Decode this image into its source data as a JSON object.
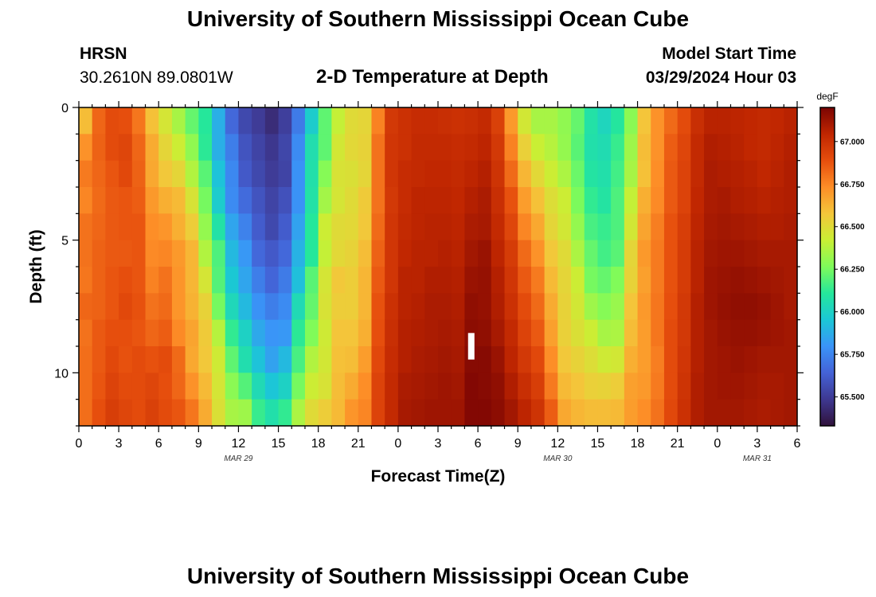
{
  "header": {
    "title": "University of Southern Mississippi Ocean Cube",
    "station": "HRSN",
    "coords": "30.2610N  89.0801W",
    "subtitle": "2-D Temperature at Depth",
    "model_start_label": "Model Start Time",
    "model_start_value": "03/29/2024 Hour 03",
    "footer_title": "University of Southern Mississippi Ocean Cube"
  },
  "colors": {
    "stops": [
      "#30123b",
      "#3e3891",
      "#4462d6",
      "#3a94f8",
      "#1bc7d6",
      "#25e79b",
      "#7ffb5a",
      "#c9ef34",
      "#f4c63a",
      "#fd8d27",
      "#e64e0d",
      "#c02601",
      "#7a0403"
    ]
  },
  "chart_data": {
    "type": "heatmap",
    "title": "2-D Temperature at Depth",
    "xlabel": "Forecast Time(Z)",
    "ylabel": "Depth (ft)",
    "x_tick_labels": [
      "0",
      "3",
      "6",
      "9",
      "12",
      "15",
      "18",
      "21",
      "0",
      "3",
      "6",
      "9",
      "12",
      "15",
      "18",
      "21",
      "0",
      "3",
      "6"
    ],
    "x_range_hours": [
      0,
      54
    ],
    "date_labels": [
      {
        "label": "MAR 29",
        "hour": 12
      },
      {
        "label": "MAR 30",
        "hour": 36
      },
      {
        "label": "MAR 31",
        "hour": 51
      }
    ],
    "y_tick_labels": [
      "0",
      "5",
      "10"
    ],
    "ylim": [
      0,
      12
    ],
    "colorbar": {
      "unit": "degF",
      "min": 65.33,
      "max": 67.2,
      "ticks": [
        "65.500",
        "65.750",
        "66.000",
        "66.250",
        "66.500",
        "66.750",
        "67.000"
      ],
      "tick_values": [
        65.5,
        65.75,
        66.0,
        66.25,
        66.5,
        66.75,
        67.0
      ]
    },
    "depth_levels_ft": [
      0.5,
      1.5,
      2.5,
      3.5,
      4.5,
      5.5,
      6.5,
      7.5,
      8.5,
      9.5,
      10.5,
      11.5
    ],
    "hour_bin": 1,
    "series": [
      {
        "name": "1h",
        "values": [
          66.6,
          66.72,
          66.78,
          66.75,
          66.8,
          66.8,
          66.79,
          66.83,
          66.8,
          66.81,
          66.81,
          66.81
        ]
      },
      {
        "name": "2h",
        "values": [
          66.83,
          66.84,
          66.83,
          66.82,
          66.83,
          66.84,
          66.84,
          66.84,
          66.86,
          66.86,
          66.87,
          66.89
        ]
      },
      {
        "name": "3h",
        "values": [
          66.9,
          66.9,
          66.87,
          66.86,
          66.86,
          66.86,
          66.87,
          66.87,
          66.89,
          66.91,
          66.93,
          66.95
        ]
      },
      {
        "name": "4h",
        "values": [
          66.89,
          66.92,
          66.91,
          66.87,
          66.87,
          66.86,
          66.89,
          66.91,
          66.89,
          66.88,
          66.9,
          66.92
        ]
      },
      {
        "name": "5h",
        "values": [
          66.79,
          66.83,
          66.84,
          66.85,
          66.87,
          66.87,
          66.87,
          66.88,
          66.87,
          66.9,
          66.9,
          66.9
        ]
      },
      {
        "name": "6h",
        "values": [
          66.59,
          66.65,
          66.66,
          66.7,
          66.73,
          66.74,
          66.76,
          66.8,
          66.83,
          66.88,
          66.92,
          66.94
        ]
      },
      {
        "name": "7h",
        "values": [
          66.46,
          66.52,
          66.57,
          66.64,
          66.71,
          66.75,
          66.8,
          66.82,
          66.85,
          66.9,
          66.89,
          66.9
        ]
      },
      {
        "name": "8h",
        "values": [
          66.35,
          66.43,
          66.52,
          66.61,
          66.64,
          66.7,
          66.71,
          66.71,
          66.74,
          66.82,
          66.83,
          66.87
        ]
      },
      {
        "name": "9h",
        "values": [
          66.22,
          66.3,
          66.37,
          66.47,
          66.55,
          66.62,
          66.62,
          66.63,
          66.67,
          66.66,
          66.72,
          66.79
        ]
      },
      {
        "name": "10h",
        "values": [
          66.11,
          66.12,
          66.2,
          66.25,
          66.31,
          66.37,
          66.46,
          66.53,
          66.56,
          66.57,
          66.61,
          66.65
        ]
      },
      {
        "name": "11h",
        "values": [
          65.88,
          65.88,
          65.94,
          65.98,
          66.08,
          66.18,
          66.19,
          66.25,
          66.38,
          66.44,
          66.46,
          66.48
        ]
      },
      {
        "name": "12h",
        "values": [
          65.66,
          65.73,
          65.76,
          65.77,
          65.85,
          65.91,
          65.96,
          66.03,
          66.13,
          66.21,
          66.29,
          66.35
        ]
      },
      {
        "name": "13h",
        "values": [
          65.55,
          65.59,
          65.61,
          65.67,
          65.74,
          65.81,
          65.85,
          65.91,
          66.0,
          66.06,
          66.19,
          66.33
        ]
      },
      {
        "name": "14h",
        "values": [
          65.5,
          65.53,
          65.55,
          65.59,
          65.62,
          65.66,
          65.73,
          65.79,
          65.86,
          65.94,
          66.04,
          66.14
        ]
      },
      {
        "name": "15h",
        "values": [
          65.44,
          65.48,
          65.5,
          65.53,
          65.55,
          65.61,
          65.65,
          65.73,
          65.8,
          65.84,
          65.95,
          66.07
        ]
      },
      {
        "name": "16h",
        "values": [
          65.51,
          65.54,
          65.53,
          65.58,
          65.62,
          65.66,
          65.72,
          65.77,
          65.81,
          65.91,
          66.0,
          66.13
        ]
      },
      {
        "name": "17h",
        "values": [
          65.72,
          65.77,
          65.79,
          65.79,
          65.84,
          65.89,
          65.93,
          66.04,
          66.12,
          66.17,
          66.25,
          66.36
        ]
      },
      {
        "name": "18h",
        "values": [
          65.98,
          66.06,
          66.07,
          66.08,
          66.11,
          66.11,
          66.2,
          66.22,
          66.27,
          66.37,
          66.43,
          66.5
        ]
      },
      {
        "name": "19h",
        "values": [
          66.21,
          66.21,
          66.28,
          66.34,
          66.43,
          66.41,
          66.46,
          66.47,
          66.44,
          66.45,
          66.47,
          66.55
        ]
      },
      {
        "name": "20h",
        "values": [
          66.41,
          66.45,
          66.47,
          66.46,
          66.5,
          66.51,
          66.57,
          66.55,
          66.58,
          66.59,
          66.6,
          66.61
        ]
      },
      {
        "name": "21h",
        "values": [
          66.5,
          66.51,
          66.48,
          66.5,
          66.51,
          66.53,
          66.55,
          66.55,
          66.58,
          66.6,
          66.65,
          66.71
        ]
      },
      {
        "name": "22h",
        "values": [
          66.52,
          66.53,
          66.52,
          66.56,
          66.57,
          66.6,
          66.62,
          66.62,
          66.64,
          66.69,
          66.73,
          66.75
        ]
      },
      {
        "name": "23h",
        "values": [
          66.76,
          66.8,
          66.8,
          66.8,
          66.82,
          66.84,
          66.86,
          66.88,
          66.89,
          66.91,
          66.93,
          66.93
        ]
      },
      {
        "name": "24h",
        "values": [
          66.97,
          66.98,
          66.98,
          66.97,
          66.98,
          66.98,
          66.98,
          67.0,
          67.01,
          67.02,
          67.03,
          67.03
        ]
      },
      {
        "name": "25h",
        "values": [
          67.0,
          67.0,
          67.02,
          67.02,
          67.03,
          67.04,
          67.06,
          67.06,
          67.07,
          67.07,
          67.09,
          67.1
        ]
      },
      {
        "name": "26h",
        "values": [
          67.02,
          67.03,
          67.03,
          67.05,
          67.05,
          67.06,
          67.06,
          67.07,
          67.08,
          67.09,
          67.1,
          67.11
        ]
      },
      {
        "name": "27h",
        "values": [
          67.02,
          67.03,
          67.04,
          67.05,
          67.06,
          67.06,
          67.08,
          67.09,
          67.09,
          67.1,
          67.11,
          67.12
        ]
      },
      {
        "name": "28h",
        "values": [
          67.01,
          67.03,
          67.04,
          67.05,
          67.06,
          67.07,
          67.08,
          67.09,
          67.1,
          67.11,
          67.12,
          67.12
        ]
      },
      {
        "name": "29h",
        "values": [
          67.0,
          67.02,
          67.03,
          67.04,
          67.05,
          67.06,
          67.07,
          67.08,
          67.09,
          67.1,
          67.11,
          67.12
        ]
      },
      {
        "name": "30h",
        "values": [
          67.01,
          67.03,
          67.05,
          67.07,
          67.09,
          67.11,
          67.13,
          67.15,
          67.16,
          67.17,
          67.18,
          67.18
        ]
      },
      {
        "name": "31h",
        "values": [
          67.03,
          67.05,
          67.07,
          67.09,
          67.1,
          67.13,
          67.14,
          67.14,
          67.15,
          67.17,
          67.17,
          67.18
        ]
      },
      {
        "name": "32h",
        "values": [
          66.94,
          66.97,
          66.99,
          67.01,
          67.03,
          67.05,
          67.07,
          67.08,
          67.1,
          67.13,
          67.15,
          67.16
        ]
      },
      {
        "name": "33h",
        "values": [
          66.7,
          66.76,
          66.82,
          66.88,
          66.92,
          66.96,
          66.98,
          67.0,
          67.03,
          67.05,
          67.08,
          67.11
        ]
      },
      {
        "name": "34h",
        "values": [
          66.45,
          66.54,
          66.62,
          66.69,
          66.75,
          66.82,
          66.86,
          66.9,
          66.93,
          66.97,
          67.01,
          67.05
        ]
      },
      {
        "name": "35h",
        "values": [
          66.35,
          66.42,
          66.51,
          66.59,
          66.66,
          66.72,
          66.78,
          66.82,
          66.86,
          66.91,
          66.95,
          66.99
        ]
      },
      {
        "name": "36h",
        "values": [
          66.35,
          66.38,
          66.43,
          66.49,
          66.52,
          66.57,
          66.61,
          66.65,
          66.68,
          66.73,
          66.78,
          66.85
        ]
      },
      {
        "name": "37h",
        "values": [
          66.3,
          66.31,
          66.36,
          66.43,
          66.45,
          66.5,
          66.52,
          66.53,
          66.54,
          66.57,
          66.61,
          66.66
        ]
      },
      {
        "name": "38h",
        "values": [
          66.22,
          66.2,
          66.23,
          66.26,
          66.31,
          66.36,
          66.43,
          66.45,
          66.48,
          66.53,
          66.58,
          66.62
        ]
      },
      {
        "name": "39h",
        "values": [
          66.08,
          66.07,
          66.09,
          66.13,
          66.17,
          66.22,
          66.25,
          66.33,
          66.43,
          66.49,
          66.54,
          66.6
        ]
      },
      {
        "name": "40h",
        "values": [
          66.02,
          66.05,
          66.07,
          66.09,
          66.14,
          66.16,
          66.22,
          66.28,
          66.35,
          66.44,
          66.53,
          66.6
        ]
      },
      {
        "name": "41h",
        "values": [
          66.1,
          66.14,
          66.16,
          66.18,
          66.18,
          66.2,
          66.27,
          66.32,
          66.36,
          66.45,
          66.55,
          66.61
        ]
      },
      {
        "name": "42h",
        "values": [
          66.29,
          66.33,
          66.35,
          66.41,
          66.45,
          66.52,
          66.53,
          66.58,
          66.6,
          66.64,
          66.68,
          66.69
        ]
      },
      {
        "name": "43h",
        "values": [
          66.58,
          66.6,
          66.59,
          66.64,
          66.67,
          66.7,
          66.68,
          66.7,
          66.69,
          66.69,
          66.7,
          66.73
        ]
      },
      {
        "name": "44h",
        "values": [
          66.72,
          66.72,
          66.73,
          66.74,
          66.77,
          66.78,
          66.78,
          66.79,
          66.79,
          66.77,
          66.78,
          66.8
        ]
      },
      {
        "name": "45h",
        "values": [
          66.82,
          66.85,
          66.86,
          66.86,
          66.88,
          66.88,
          66.88,
          66.89,
          66.9,
          66.9,
          66.9,
          66.91
        ]
      },
      {
        "name": "46h",
        "values": [
          66.9,
          66.92,
          66.93,
          66.93,
          66.95,
          66.96,
          66.96,
          66.97,
          66.97,
          66.98,
          66.99,
          67.0
        ]
      },
      {
        "name": "47h",
        "values": [
          67.01,
          67.03,
          67.03,
          67.04,
          67.05,
          67.06,
          67.06,
          67.07,
          67.07,
          67.07,
          67.08,
          67.08
        ]
      },
      {
        "name": "48h",
        "values": [
          67.06,
          67.08,
          67.09,
          67.09,
          67.1,
          67.11,
          67.12,
          67.12,
          67.11,
          67.11,
          67.11,
          67.11
        ]
      },
      {
        "name": "49h",
        "values": [
          67.06,
          67.07,
          67.08,
          67.1,
          67.11,
          67.12,
          67.13,
          67.14,
          67.13,
          67.12,
          67.12,
          67.11
        ]
      },
      {
        "name": "50h",
        "values": [
          67.05,
          67.06,
          67.07,
          67.08,
          67.1,
          67.12,
          67.14,
          67.15,
          67.14,
          67.13,
          67.12,
          67.11
        ]
      },
      {
        "name": "51h",
        "values": [
          67.04,
          67.04,
          67.06,
          67.07,
          67.09,
          67.11,
          67.13,
          67.15,
          67.14,
          67.12,
          67.11,
          67.1
        ]
      },
      {
        "name": "52h",
        "values": [
          67.03,
          67.03,
          67.04,
          67.06,
          67.08,
          67.1,
          67.12,
          67.14,
          67.13,
          67.11,
          67.1,
          67.09
        ]
      },
      {
        "name": "53h",
        "values": [
          67.04,
          67.05,
          67.06,
          67.07,
          67.08,
          67.1,
          67.11,
          67.12,
          67.12,
          67.11,
          67.1,
          67.1
        ]
      },
      {
        "name": "54h",
        "values": [
          67.06,
          67.07,
          67.08,
          67.08,
          67.09,
          67.1,
          67.1,
          67.1,
          67.11,
          67.11,
          67.11,
          67.11
        ]
      }
    ],
    "current_time_marker": {
      "hour": 29.5,
      "depth_range_ft": [
        8.5,
        9.5
      ]
    }
  }
}
